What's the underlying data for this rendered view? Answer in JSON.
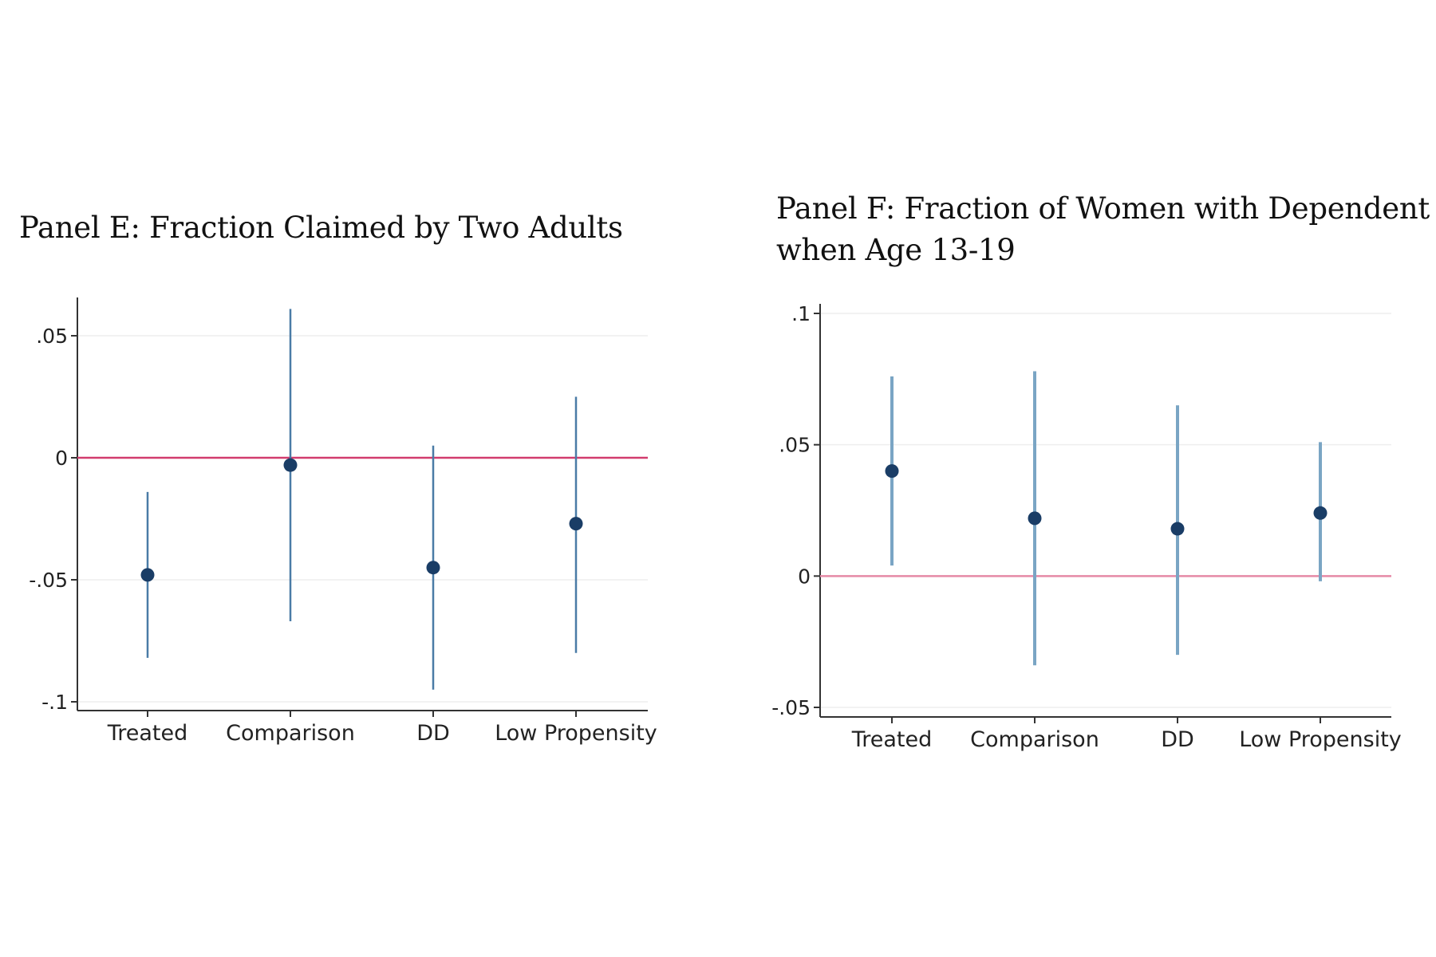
{
  "chart_data": [
    {
      "type": "scatter",
      "title": "Panel E: Fraction Claimed by Two Adults",
      "xlabel": "",
      "ylabel": "",
      "categories": [
        "Treated",
        "Comparison",
        "DD",
        "Low Propensity"
      ],
      "estimates": [
        -0.048,
        -0.003,
        -0.045,
        -0.027
      ],
      "ci_low": [
        -0.082,
        -0.067,
        -0.095,
        -0.08
      ],
      "ci_high": [
        -0.014,
        0.061,
        0.005,
        0.025
      ],
      "ylim": [
        -0.1,
        0.05
      ],
      "yticks": [
        -0.1,
        -0.05,
        0,
        0.05
      ],
      "ytick_labels": [
        "-.1",
        "-.05",
        "0",
        ".05"
      ],
      "reference_line": 0,
      "grid": true,
      "colors": {
        "point": "#1a3d66",
        "ci": "#4a7ba6",
        "reference": "#d23c6e",
        "grid": "#eeeeee"
      }
    },
    {
      "type": "scatter",
      "title": "Panel F: Fraction of Women with Dependent when Age 13-19",
      "xlabel": "",
      "ylabel": "",
      "categories": [
        "Treated",
        "Comparison",
        "DD",
        "Low Propensity"
      ],
      "estimates": [
        0.04,
        0.022,
        0.018,
        0.024
      ],
      "ci_low": [
        0.004,
        -0.034,
        -0.03,
        -0.002
      ],
      "ci_high": [
        0.076,
        0.078,
        0.065,
        0.051
      ],
      "ylim": [
        -0.05,
        0.1
      ],
      "yticks": [
        -0.05,
        0,
        0.05,
        0.1
      ],
      "ytick_labels": [
        "-.05",
        "0",
        ".05",
        ".1"
      ],
      "reference_line": 0,
      "grid": true,
      "colors": {
        "point": "#1a3d66",
        "ci": "#7aa5c4",
        "reference": "#e58aa6",
        "grid": "#eeeeee"
      }
    }
  ]
}
